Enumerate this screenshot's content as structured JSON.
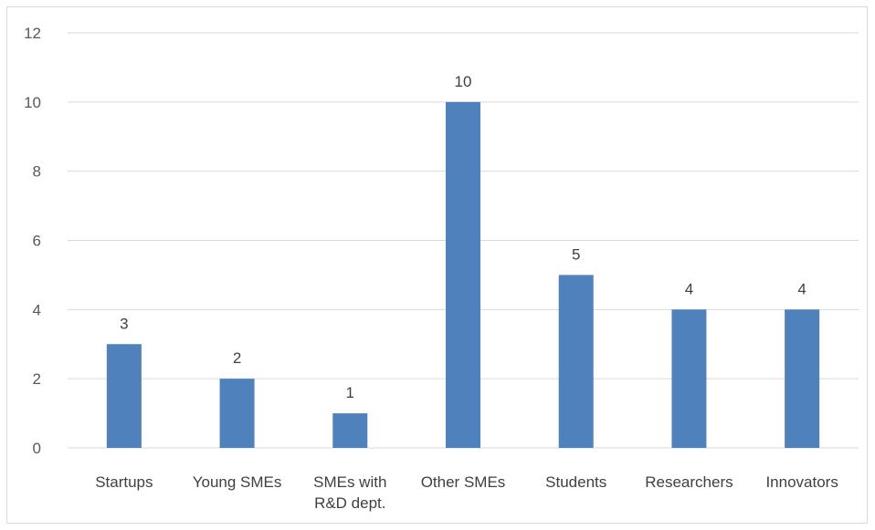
{
  "chart_data": {
    "type": "bar",
    "title": "",
    "xlabel": "",
    "ylabel": "",
    "categories": [
      [
        "Startups"
      ],
      [
        "Young SMEs"
      ],
      [
        "SMEs with",
        "R&D dept."
      ],
      [
        "Other SMEs"
      ],
      [
        "Students"
      ],
      [
        "Researchers"
      ],
      [
        "Innovators"
      ]
    ],
    "values": [
      3,
      2,
      1,
      10,
      5,
      4,
      4
    ],
    "ylim": [
      0,
      12
    ],
    "yticks": [
      0,
      2,
      4,
      6,
      8,
      10,
      12
    ],
    "grid": true,
    "legend": "none",
    "data_labels": true,
    "bar_color": "#4f81bd"
  }
}
